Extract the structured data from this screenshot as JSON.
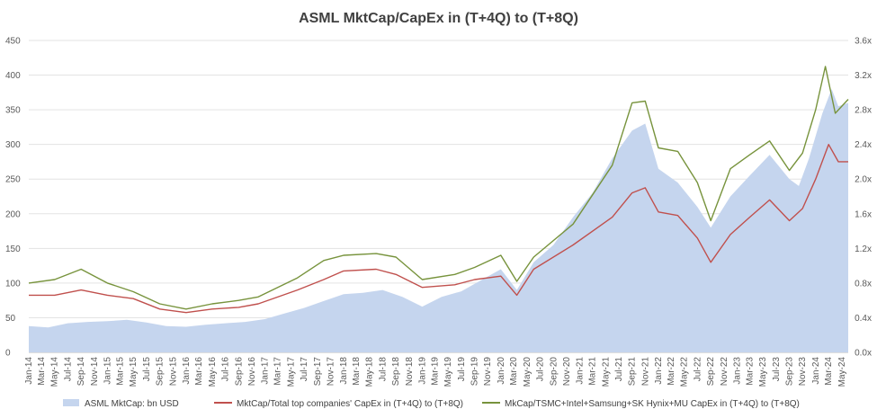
{
  "chart_data": {
    "type": "area+line",
    "title": "ASML MktCap/CapEx in (T+4Q) to (T+8Q)",
    "y_left": {
      "min": 0,
      "max": 450,
      "step": 50,
      "ticks": [
        "0",
        "50",
        "100",
        "150",
        "200",
        "250",
        "300",
        "350",
        "400",
        "450"
      ]
    },
    "y_right": {
      "min": 0,
      "max": 3.6,
      "step": 0.4,
      "ticks": [
        "0.0x",
        "0.4x",
        "0.8x",
        "1.2x",
        "1.6x",
        "2.0x",
        "2.4x",
        "2.8x",
        "3.2x",
        "3.6x"
      ]
    },
    "x_start": "2014-01-01",
    "x_end": "2024-05-31",
    "x_tick_labels": [
      "Jan-14",
      "Mar-14",
      "May-14",
      "Jul-14",
      "Sep-14",
      "Nov-14",
      "Jan-15",
      "Mar-15",
      "May-15",
      "Jul-15",
      "Sep-15",
      "Nov-15",
      "Jan-16",
      "Mar-16",
      "May-16",
      "Jul-16",
      "Sep-16",
      "Nov-16",
      "Jan-17",
      "Mar-17",
      "May-17",
      "Jul-17",
      "Sep-17",
      "Nov-17",
      "Jan-18",
      "Mar-18",
      "May-18",
      "Jul-18",
      "Sep-18",
      "Nov-18",
      "Jan-19",
      "Mar-19",
      "May-19",
      "Jul-19",
      "Sep-19",
      "Nov-19",
      "Jan-20",
      "Mar-20",
      "May-20",
      "Jul-20",
      "Sep-20",
      "Nov-20",
      "Jan-21",
      "Mar-21",
      "May-21",
      "Jul-21",
      "Sep-21",
      "Nov-21",
      "Jan-22",
      "Mar-22",
      "May-22",
      "Jul-22",
      "Sep-22",
      "Nov-22",
      "Jan-23",
      "Mar-23",
      "May-23",
      "Jul-23",
      "Sep-23",
      "Nov-23",
      "Jan-24",
      "Mar-24",
      "May-24"
    ],
    "grid": true,
    "legend_position": "bottom",
    "series": [
      {
        "name": "ASML MktCap: bn USD",
        "kind": "area",
        "axis": "left",
        "color": "#c5d5ee",
        "points": [
          [
            "2014-01-01",
            38
          ],
          [
            "2014-04-01",
            36
          ],
          [
            "2014-07-01",
            42
          ],
          [
            "2014-10-01",
            44
          ],
          [
            "2015-01-01",
            45
          ],
          [
            "2015-04-01",
            47
          ],
          [
            "2015-07-01",
            43
          ],
          [
            "2015-10-01",
            38
          ],
          [
            "2016-01-01",
            37
          ],
          [
            "2016-04-01",
            40
          ],
          [
            "2016-07-01",
            42
          ],
          [
            "2016-10-01",
            44
          ],
          [
            "2017-01-01",
            48
          ],
          [
            "2017-04-01",
            56
          ],
          [
            "2017-07-01",
            64
          ],
          [
            "2017-10-01",
            74
          ],
          [
            "2018-01-01",
            84
          ],
          [
            "2018-04-01",
            86
          ],
          [
            "2018-07-01",
            90
          ],
          [
            "2018-10-01",
            80
          ],
          [
            "2019-01-01",
            66
          ],
          [
            "2019-04-01",
            80
          ],
          [
            "2019-07-01",
            88
          ],
          [
            "2019-10-01",
            104
          ],
          [
            "2020-01-01",
            120
          ],
          [
            "2020-03-15",
            90
          ],
          [
            "2020-06-01",
            130
          ],
          [
            "2020-09-01",
            155
          ],
          [
            "2020-12-01",
            195
          ],
          [
            "2021-03-01",
            230
          ],
          [
            "2021-06-01",
            280
          ],
          [
            "2021-09-01",
            320
          ],
          [
            "2021-11-01",
            330
          ],
          [
            "2022-01-01",
            265
          ],
          [
            "2022-04-01",
            245
          ],
          [
            "2022-07-01",
            210
          ],
          [
            "2022-09-01",
            180
          ],
          [
            "2022-12-01",
            225
          ],
          [
            "2023-03-01",
            255
          ],
          [
            "2023-06-01",
            285
          ],
          [
            "2023-09-01",
            250
          ],
          [
            "2023-10-15",
            240
          ],
          [
            "2023-12-01",
            280
          ],
          [
            "2024-02-01",
            345
          ],
          [
            "2024-03-15",
            380
          ],
          [
            "2024-04-15",
            355
          ],
          [
            "2024-05-31",
            360
          ]
        ]
      },
      {
        "name": "MktCap/Total top companies' CapEx in (T+4Q) to (T+8Q)",
        "kind": "line",
        "axis": "right",
        "color": "#c0504d",
        "points": [
          [
            "2014-01-01",
            0.66
          ],
          [
            "2014-05-01",
            0.66
          ],
          [
            "2014-09-01",
            0.72
          ],
          [
            "2015-01-01",
            0.66
          ],
          [
            "2015-05-01",
            0.62
          ],
          [
            "2015-09-01",
            0.5
          ],
          [
            "2016-01-01",
            0.46
          ],
          [
            "2016-05-01",
            0.5
          ],
          [
            "2016-09-01",
            0.52
          ],
          [
            "2016-12-01",
            0.56
          ],
          [
            "2017-06-01",
            0.72
          ],
          [
            "2017-10-01",
            0.84
          ],
          [
            "2018-01-01",
            0.94
          ],
          [
            "2018-06-01",
            0.96
          ],
          [
            "2018-09-01",
            0.9
          ],
          [
            "2019-01-01",
            0.75
          ],
          [
            "2019-06-01",
            0.78
          ],
          [
            "2019-09-01",
            0.84
          ],
          [
            "2020-01-01",
            0.88
          ],
          [
            "2020-03-15",
            0.66
          ],
          [
            "2020-06-01",
            0.96
          ],
          [
            "2020-12-01",
            1.24
          ],
          [
            "2021-06-01",
            1.56
          ],
          [
            "2021-09-01",
            1.84
          ],
          [
            "2021-11-01",
            1.9
          ],
          [
            "2022-01-01",
            1.62
          ],
          [
            "2022-04-01",
            1.58
          ],
          [
            "2022-07-01",
            1.32
          ],
          [
            "2022-09-01",
            1.04
          ],
          [
            "2022-12-01",
            1.36
          ],
          [
            "2023-03-01",
            1.56
          ],
          [
            "2023-06-01",
            1.76
          ],
          [
            "2023-09-01",
            1.52
          ],
          [
            "2023-11-01",
            1.66
          ],
          [
            "2024-01-01",
            2.0
          ],
          [
            "2024-03-01",
            2.4
          ],
          [
            "2024-04-15",
            2.2
          ],
          [
            "2024-05-31",
            2.2
          ]
        ]
      },
      {
        "name": "MkCap/TSMC+Intel+Samsung+SK Hynix+MU CapEx in (T+4Q) to (T+8Q)",
        "kind": "line",
        "axis": "right",
        "color": "#77933c",
        "points": [
          [
            "2014-01-01",
            0.8
          ],
          [
            "2014-05-01",
            0.84
          ],
          [
            "2014-09-01",
            0.96
          ],
          [
            "2015-01-01",
            0.8
          ],
          [
            "2015-05-01",
            0.7
          ],
          [
            "2015-09-01",
            0.56
          ],
          [
            "2016-01-01",
            0.5
          ],
          [
            "2016-05-01",
            0.56
          ],
          [
            "2016-09-01",
            0.6
          ],
          [
            "2016-12-01",
            0.64
          ],
          [
            "2017-06-01",
            0.86
          ],
          [
            "2017-10-01",
            1.06
          ],
          [
            "2018-01-01",
            1.12
          ],
          [
            "2018-06-01",
            1.14
          ],
          [
            "2018-09-01",
            1.1
          ],
          [
            "2019-01-01",
            0.84
          ],
          [
            "2019-06-01",
            0.9
          ],
          [
            "2019-09-01",
            0.98
          ],
          [
            "2020-01-01",
            1.12
          ],
          [
            "2020-03-15",
            0.82
          ],
          [
            "2020-06-01",
            1.1
          ],
          [
            "2020-12-01",
            1.48
          ],
          [
            "2021-06-01",
            2.16
          ],
          [
            "2021-09-01",
            2.88
          ],
          [
            "2021-11-01",
            2.9
          ],
          [
            "2022-01-01",
            2.36
          ],
          [
            "2022-04-01",
            2.32
          ],
          [
            "2022-07-01",
            1.96
          ],
          [
            "2022-09-01",
            1.52
          ],
          [
            "2022-12-01",
            2.12
          ],
          [
            "2023-03-01",
            2.28
          ],
          [
            "2023-06-01",
            2.44
          ],
          [
            "2023-09-01",
            2.1
          ],
          [
            "2023-11-01",
            2.3
          ],
          [
            "2024-01-01",
            2.8
          ],
          [
            "2024-02-15",
            3.3
          ],
          [
            "2024-04-01",
            2.76
          ],
          [
            "2024-05-31",
            2.92
          ]
        ]
      }
    ]
  },
  "legend": [
    {
      "label": "ASML MktCap: bn USD",
      "color": "#c5d5ee",
      "shape": "box"
    },
    {
      "label": "MktCap/Total top companies' CapEx in (T+4Q) to (T+8Q)",
      "color": "#c0504d",
      "shape": "line"
    },
    {
      "label": "MkCap/TSMC+Intel+Samsung+SK Hynix+MU CapEx in (T+4Q) to (T+8Q)",
      "color": "#77933c",
      "shape": "line"
    }
  ]
}
